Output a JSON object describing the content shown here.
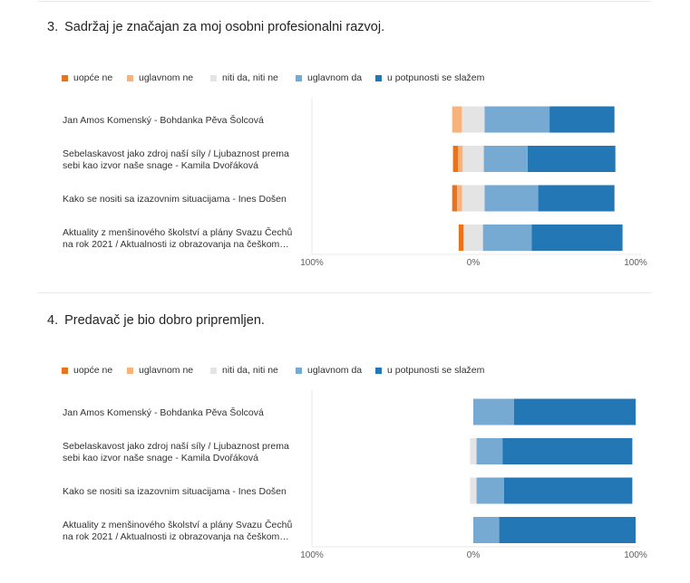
{
  "colors": {
    "uopce_ne": "#e8731f",
    "uglavnom_ne": "#f9b27a",
    "niti_da_niti_ne": "#e4e4e4",
    "uglavnom_da": "#76aad2",
    "u_potpunosti": "#2277b4"
  },
  "chart_data": [
    {
      "type": "bar",
      "stacking": "diverging",
      "question_number": "3.",
      "title": "Sadržaj je značajan za moj osobni profesionalni razvoj.",
      "legend": [
        "uopće ne",
        "uglavnom ne",
        "niti da, niti ne",
        "uglavnom da",
        "u potpunosti se slažem"
      ],
      "categories": [
        [
          "Jan Amos Komenský - Bohdanka Pěva Šolcová"
        ],
        [
          "Sebelaskavost jako zdroj naší síly / Ljubaznost prema",
          "sebi kao izvor naše snage - Kamila Dvořáková"
        ],
        [
          "Kako se nositi sa izazovnim situacijama - Ines Došen"
        ],
        [
          "Aktuality z menšinového školství a plány Svazu Čechů",
          "na rok 2021 / Aktualnosti iz obrazovanja na češkom…"
        ]
      ],
      "series": [
        {
          "name": "uopće ne",
          "values": [
            0,
            3,
            3,
            3
          ]
        },
        {
          "name": "uglavnom ne",
          "values": [
            6,
            3,
            3,
            0
          ]
        },
        {
          "name": "niti da, niti ne",
          "values": [
            14,
            13,
            14,
            12
          ]
        },
        {
          "name": "uglavnom da",
          "values": [
            40,
            27,
            33,
            30
          ]
        },
        {
          "name": "u potpunosti se slažem",
          "values": [
            40,
            54,
            47,
            56
          ]
        }
      ],
      "tick_labels": [
        "100%",
        "0%",
        "100%"
      ],
      "xlim": [
        -100,
        100
      ]
    },
    {
      "type": "bar",
      "stacking": "diverging",
      "question_number": "4.",
      "title": "Predavač je bio dobro pripremljen.",
      "legend": [
        "uopće ne",
        "uglavnom ne",
        "niti da, niti ne",
        "uglavnom da",
        "u potpunosti se slažem"
      ],
      "categories": [
        [
          "Jan Amos Komenský - Bohdanka Pěva Šolcová"
        ],
        [
          "Sebelaskavost jako zdroj naší síly / Ljubaznost prema",
          "sebi kao izvor naše snage - Kamila Dvořáková"
        ],
        [
          "Kako se nositi sa izazovnim situacijama - Ines Došen"
        ],
        [
          "Aktuality z menšinového školství a plány Svazu Čechů",
          "na rok 2021 / Aktualnosti iz obrazovanja na češkom…"
        ]
      ],
      "series": [
        {
          "name": "uopće ne",
          "values": [
            0,
            0,
            0,
            0
          ]
        },
        {
          "name": "uglavnom ne",
          "values": [
            0,
            0,
            0,
            0
          ]
        },
        {
          "name": "niti da, niti ne",
          "values": [
            0,
            4,
            4,
            0
          ]
        },
        {
          "name": "uglavnom da",
          "values": [
            25,
            16,
            17,
            16
          ]
        },
        {
          "name": "u potpunosti se slažem",
          "values": [
            75,
            80,
            79,
            84
          ]
        }
      ],
      "tick_labels": [
        "100%",
        "0%",
        "100%"
      ],
      "xlim": [
        -100,
        100
      ]
    }
  ]
}
